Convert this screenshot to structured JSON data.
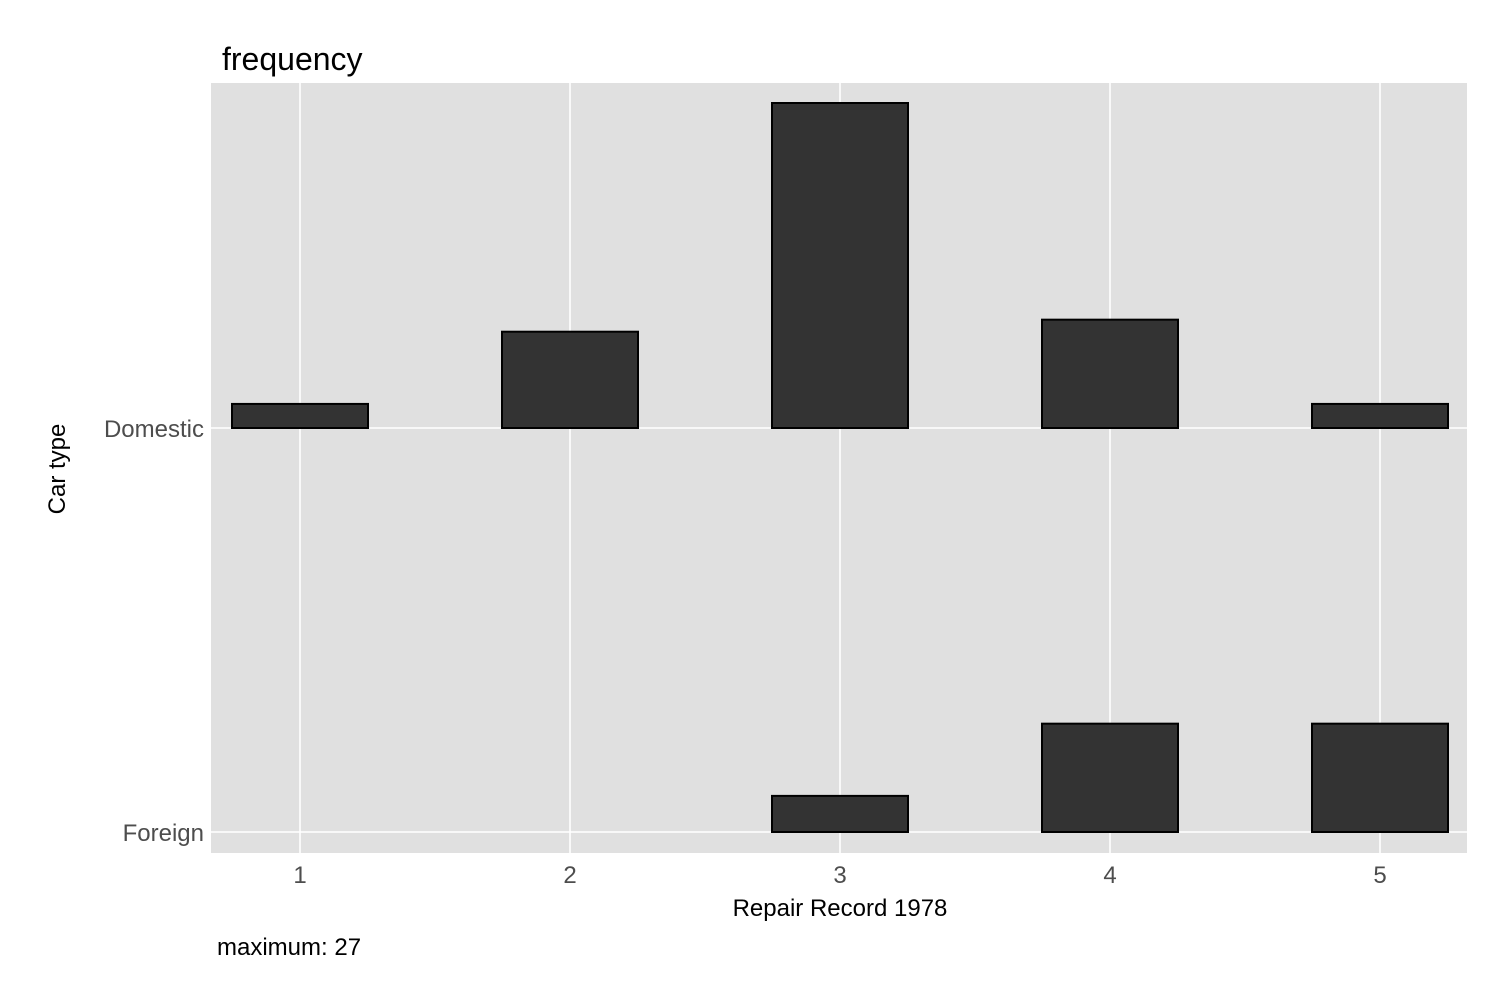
{
  "chart_data": {
    "type": "bar",
    "title": "frequency",
    "xlabel": "Repair Record 1978",
    "ylabel": "Car type",
    "caption": "maximum: 27",
    "x_categories": [
      "1",
      "2",
      "3",
      "4",
      "5"
    ],
    "y_categories": [
      "Domestic",
      "Foreign"
    ],
    "max_value": 27,
    "series": [
      {
        "name": "Domestic",
        "values": [
          2,
          8,
          27,
          9,
          2
        ]
      },
      {
        "name": "Foreign",
        "values": [
          0,
          0,
          3,
          9,
          9
        ]
      }
    ],
    "colors": {
      "panel": "#e0e0e0",
      "grid": "#ffffff",
      "bar_fill": "#333333",
      "bar_stroke": "#000000"
    },
    "grid": true,
    "legend": "none"
  }
}
